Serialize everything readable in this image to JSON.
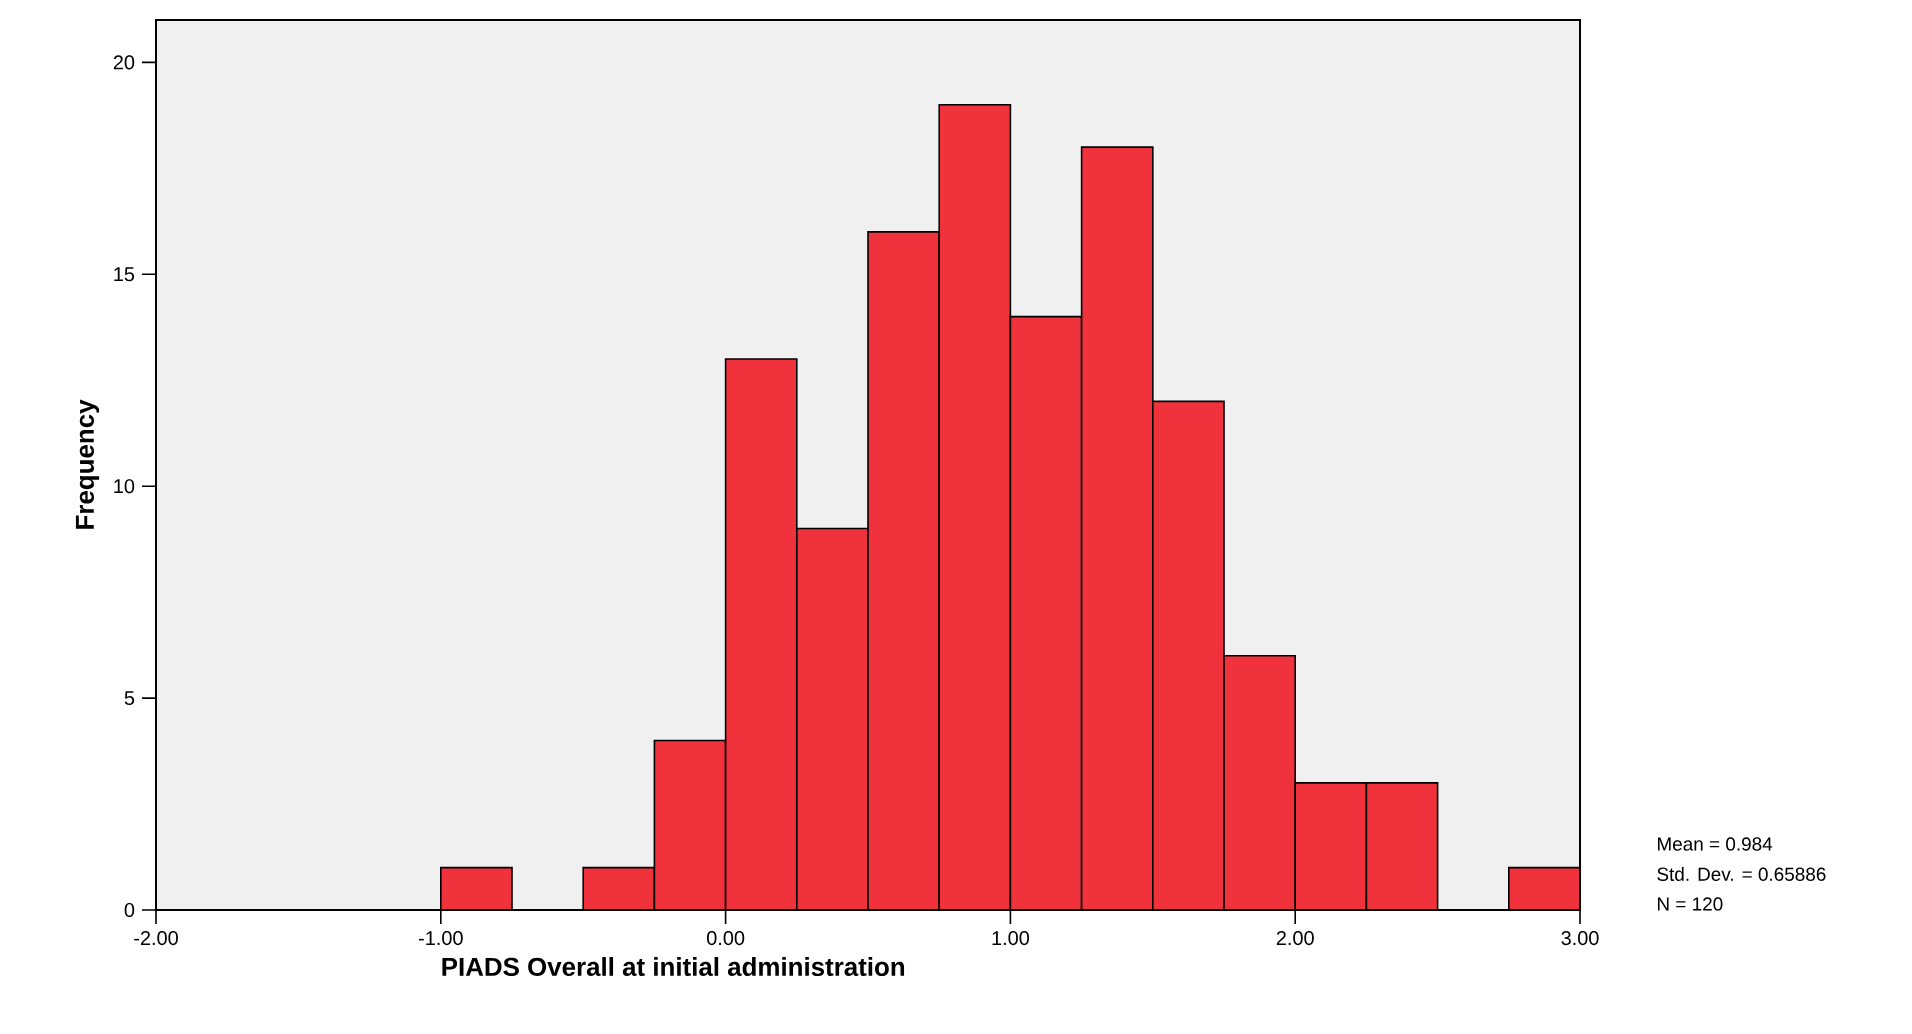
{
  "chart_data": {
    "type": "histogram",
    "xlabel": "PIADS Overall at initial administration",
    "ylabel": "Frequency",
    "bins": [
      -1.0,
      -0.75,
      -0.5,
      -0.25,
      0.0,
      0.25,
      0.5,
      0.75,
      1.0,
      1.25,
      1.5,
      1.75,
      2.0,
      2.25,
      2.5,
      2.75,
      3.0
    ],
    "values": [
      1,
      0,
      1,
      4,
      13,
      9,
      16,
      19,
      14,
      18,
      12,
      6,
      3,
      3,
      0,
      1
    ],
    "color": "#f0323c",
    "xlim": [
      -2,
      3
    ],
    "ylim": [
      0,
      21
    ],
    "xticks": [
      {
        "value": -2,
        "label": "-2.00"
      },
      {
        "value": -1,
        "label": "-1.00"
      },
      {
        "value": 0,
        "label": "0.00"
      },
      {
        "value": 1,
        "label": "1.00"
      },
      {
        "value": 2,
        "label": "2.00"
      },
      {
        "value": 3,
        "label": "3.00"
      }
    ],
    "yticks": [
      0,
      5,
      10,
      15,
      20
    ],
    "annotations": [
      "Mean = 0.984",
      "Std. Dev. = 0.65886",
      "N = 120"
    ]
  }
}
